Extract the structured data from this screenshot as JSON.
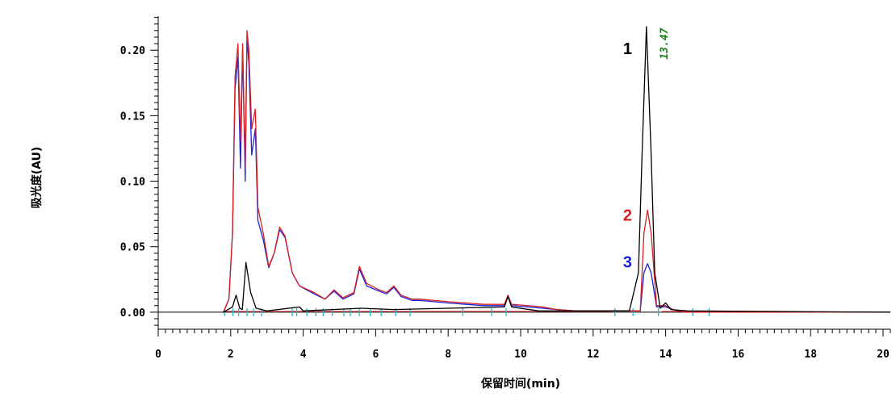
{
  "chart_data": {
    "type": "line",
    "xlabel": "保留时间(min)",
    "ylabel": "吸光度(AU)",
    "xlim": [
      0,
      20.2
    ],
    "ylim": [
      -0.013,
      0.226
    ],
    "x_ticks": [
      "0",
      "2",
      "4",
      "6",
      "8",
      "10",
      "12",
      "14",
      "16",
      "18",
      "20"
    ],
    "y_ticks": [
      "0.00",
      "0.05",
      "0.10",
      "0.15",
      "0.20"
    ],
    "grid": false,
    "legend": "none",
    "annotations": [
      {
        "text": "13.47",
        "x": 13.47,
        "color": "#1a7a1a"
      }
    ],
    "series": [
      {
        "label": "1",
        "color": "#000000",
        "points": [
          [
            1.8,
            0
          ],
          [
            2.05,
            0.004
          ],
          [
            2.15,
            0.013
          ],
          [
            2.25,
            0.003
          ],
          [
            2.32,
            0.002
          ],
          [
            2.42,
            0.038
          ],
          [
            2.55,
            0.015
          ],
          [
            2.7,
            0.003
          ],
          [
            3.0,
            0.001
          ],
          [
            3.9,
            0.004
          ],
          [
            4.0,
            0.001
          ],
          [
            5.6,
            0.003
          ],
          [
            6.5,
            0.002
          ],
          [
            9.55,
            0.004
          ],
          [
            9.65,
            0.012
          ],
          [
            9.75,
            0.004
          ],
          [
            10.5,
            0.001
          ],
          [
            13.0,
            0.001
          ],
          [
            13.25,
            0.03
          ],
          [
            13.35,
            0.12
          ],
          [
            13.47,
            0.218
          ],
          [
            13.6,
            0.12
          ],
          [
            13.7,
            0.03
          ],
          [
            13.85,
            0.003
          ],
          [
            14.0,
            0.007
          ],
          [
            14.15,
            0.002
          ],
          [
            14.6,
            0.001
          ],
          [
            20.2,
            0
          ]
        ]
      },
      {
        "label": "2",
        "color": "#d81e1e",
        "points": [
          [
            1.8,
            0
          ],
          [
            1.95,
            0.01
          ],
          [
            2.05,
            0.06
          ],
          [
            2.12,
            0.18
          ],
          [
            2.2,
            0.205
          ],
          [
            2.27,
            0.13
          ],
          [
            2.33,
            0.205
          ],
          [
            2.4,
            0.11
          ],
          [
            2.45,
            0.215
          ],
          [
            2.5,
            0.2
          ],
          [
            2.58,
            0.14
          ],
          [
            2.68,
            0.155
          ],
          [
            2.75,
            0.08
          ],
          [
            2.9,
            0.06
          ],
          [
            3.05,
            0.035
          ],
          [
            3.2,
            0.045
          ],
          [
            3.35,
            0.065
          ],
          [
            3.5,
            0.058
          ],
          [
            3.7,
            0.03
          ],
          [
            3.9,
            0.02
          ],
          [
            4.3,
            0.015
          ],
          [
            4.6,
            0.01
          ],
          [
            4.85,
            0.017
          ],
          [
            5.1,
            0.011
          ],
          [
            5.4,
            0.015
          ],
          [
            5.55,
            0.035
          ],
          [
            5.75,
            0.022
          ],
          [
            6.1,
            0.017
          ],
          [
            6.3,
            0.015
          ],
          [
            6.5,
            0.02
          ],
          [
            6.7,
            0.013
          ],
          [
            7.0,
            0.01
          ],
          [
            7.2,
            0.01
          ],
          [
            7.6,
            0.009
          ],
          [
            8.0,
            0.008
          ],
          [
            8.5,
            0.007
          ],
          [
            9.0,
            0.006
          ],
          [
            9.55,
            0.006
          ],
          [
            9.65,
            0.013
          ],
          [
            9.75,
            0.006
          ],
          [
            10.2,
            0.005
          ],
          [
            10.6,
            0.004
          ],
          [
            11.0,
            0.002
          ],
          [
            11.5,
            0.001
          ],
          [
            13.3,
            0.001
          ],
          [
            13.4,
            0.06
          ],
          [
            13.5,
            0.078
          ],
          [
            13.6,
            0.06
          ],
          [
            13.75,
            0.005
          ],
          [
            14.0,
            0.005
          ],
          [
            14.2,
            0.002
          ],
          [
            14.5,
            0
          ],
          [
            20.2,
            0
          ]
        ]
      },
      {
        "label": "3",
        "color": "#1c22d8",
        "points": [
          [
            1.8,
            0
          ],
          [
            1.95,
            0.01
          ],
          [
            2.05,
            0.06
          ],
          [
            2.12,
            0.17
          ],
          [
            2.2,
            0.195
          ],
          [
            2.27,
            0.11
          ],
          [
            2.33,
            0.2
          ],
          [
            2.4,
            0.1
          ],
          [
            2.45,
            0.21
          ],
          [
            2.5,
            0.19
          ],
          [
            2.58,
            0.12
          ],
          [
            2.68,
            0.14
          ],
          [
            2.75,
            0.07
          ],
          [
            2.9,
            0.055
          ],
          [
            3.05,
            0.034
          ],
          [
            3.2,
            0.045
          ],
          [
            3.35,
            0.063
          ],
          [
            3.5,
            0.057
          ],
          [
            3.7,
            0.03
          ],
          [
            3.9,
            0.02
          ],
          [
            4.3,
            0.014
          ],
          [
            4.6,
            0.01
          ],
          [
            4.85,
            0.016
          ],
          [
            5.1,
            0.01
          ],
          [
            5.4,
            0.014
          ],
          [
            5.55,
            0.033
          ],
          [
            5.75,
            0.02
          ],
          [
            6.1,
            0.016
          ],
          [
            6.3,
            0.014
          ],
          [
            6.5,
            0.019
          ],
          [
            6.7,
            0.012
          ],
          [
            7.0,
            0.009
          ],
          [
            7.2,
            0.009
          ],
          [
            7.6,
            0.008
          ],
          [
            8.0,
            0.007
          ],
          [
            8.5,
            0.006
          ],
          [
            9.0,
            0.005
          ],
          [
            9.55,
            0.005
          ],
          [
            9.65,
            0.012
          ],
          [
            9.75,
            0.005
          ],
          [
            10.2,
            0.004
          ],
          [
            10.6,
            0.003
          ],
          [
            11.0,
            0.002
          ],
          [
            11.5,
            0.001
          ],
          [
            13.3,
            0.001
          ],
          [
            13.4,
            0.03
          ],
          [
            13.5,
            0.037
          ],
          [
            13.6,
            0.03
          ],
          [
            13.75,
            0.004
          ],
          [
            14.0,
            0.004
          ],
          [
            14.2,
            0.002
          ],
          [
            14.5,
            0
          ],
          [
            20.2,
            0
          ]
        ]
      }
    ],
    "integration_marks_x": [
      1.83,
      2.06,
      2.22,
      2.45,
      2.63,
      2.85,
      3.7,
      3.82,
      4.1,
      4.35,
      4.55,
      4.8,
      5.12,
      5.3,
      5.55,
      5.85,
      6.15,
      6.55,
      6.95,
      8.4,
      9.2,
      9.6,
      12.6,
      13.1,
      13.8,
      14.75,
      15.2
    ]
  }
}
